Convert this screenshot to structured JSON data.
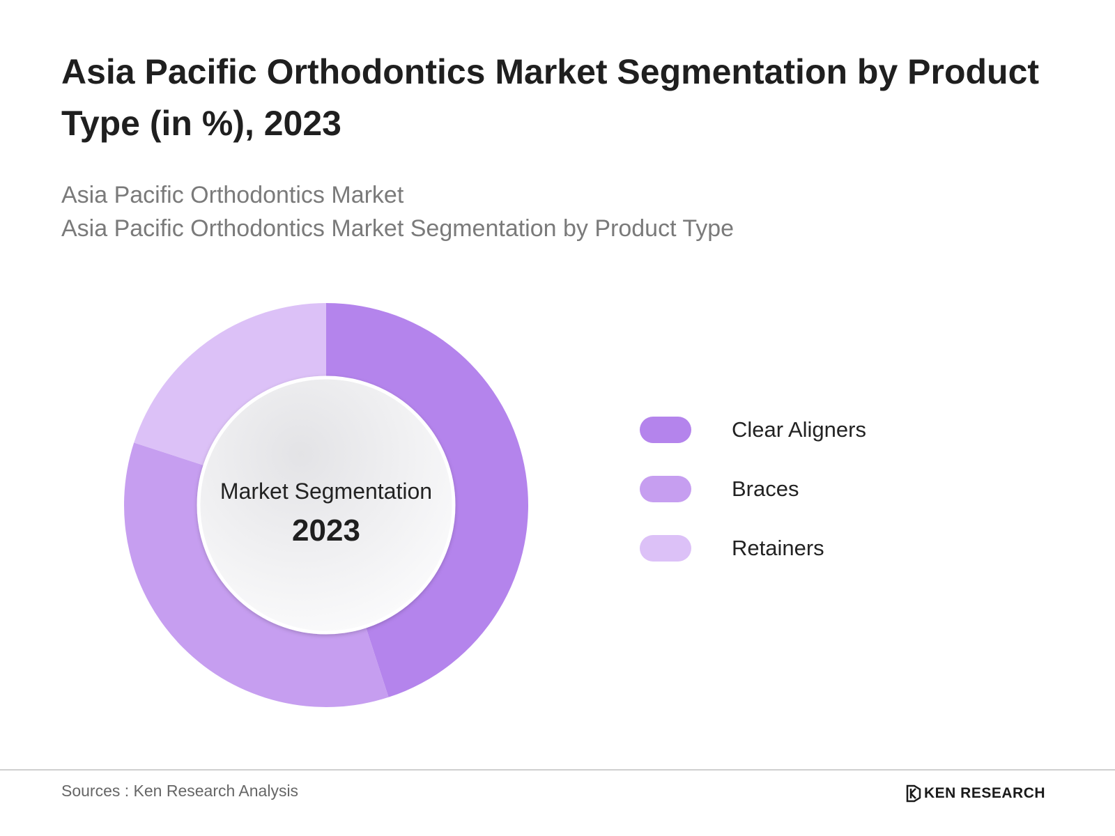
{
  "title": "Asia Pacific Orthodontics Market Segmentation by Product Type (in %), 2023",
  "subtitle_lines": [
    "Asia Pacific Orthodontics Market",
    "Asia Pacific Orthodontics Market Segmentation by Product Type"
  ],
  "chart_data": {
    "type": "pie",
    "variant": "donut",
    "center_label": "Market Segmentation",
    "center_value": "2023",
    "legend_position": "right",
    "slices": [
      {
        "name": "Clear Aligners",
        "value": 45,
        "color": "#b484ec"
      },
      {
        "name": "Braces",
        "value": 35,
        "color": "#c69ef0"
      },
      {
        "name": "Retainers",
        "value": 20,
        "color": "#dcc1f7"
      }
    ]
  },
  "footer": {
    "source": "Sources : Ken Research Analysis",
    "logo_text": "KEN RESEARCH"
  }
}
